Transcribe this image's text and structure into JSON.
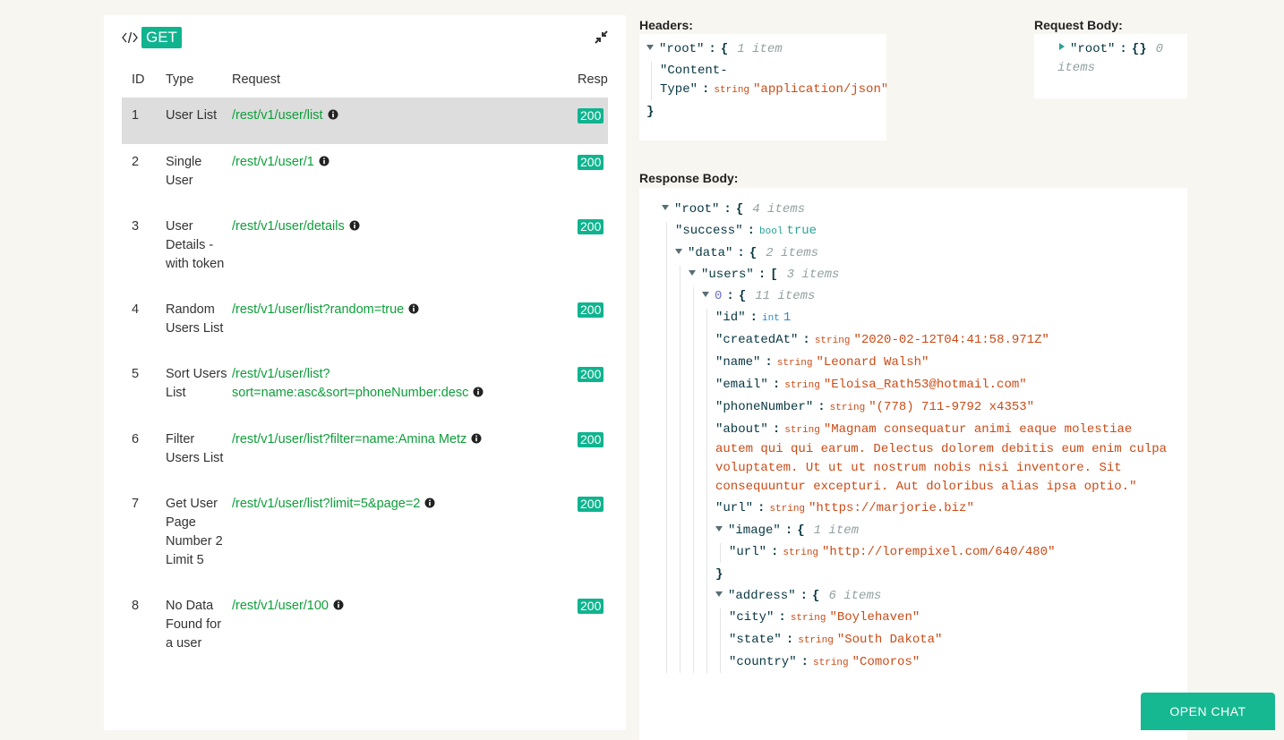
{
  "left_panel": {
    "method": "GET",
    "table": {
      "columns": [
        "ID",
        "Type",
        "Request",
        "Response"
      ],
      "rows": [
        [
          1,
          "User List",
          "/rest/v1/user/list",
          200
        ],
        [
          2,
          "Single User",
          "/rest/v1/user/1",
          200
        ],
        [
          3,
          "User Details - with token",
          "/rest/v1/user/details",
          200
        ],
        [
          4,
          "Random Users List",
          "/rest/v1/user/list?random=true",
          200
        ],
        [
          5,
          "Sort Users List",
          "/rest/v1/user/list?sort=name:asc&sort=phoneNumber:desc",
          200
        ],
        [
          6,
          "Filter Users List",
          "/rest/v1/user/list?filter=name:Amina Metz",
          200
        ],
        [
          7,
          "Get User Page Number 2 Limit 5",
          "/rest/v1/user/list?limit=5&page=2",
          200
        ],
        [
          8,
          "No Data Found for a user",
          "/rest/v1/user/100",
          200
        ]
      ]
    }
  },
  "headers": {
    "label": "Headers:",
    "tree": {
      "toggle": "expanded",
      "key": "\"root\"",
      "sep": ":",
      "open": "{",
      "count": "1 item",
      "children": [
        {
          "key": "\"Content-Type\"",
          "sep": ":",
          "type": "string",
          "value": "\"application/json\""
        }
      ],
      "close": "}"
    }
  },
  "request_body": {
    "label": "Request Body:",
    "tree": {
      "toggle": "collapsed",
      "key": "\"root\"",
      "sep": ":",
      "open": "{}",
      "count": "0 items"
    }
  },
  "response_body": {
    "label": "Response Body:",
    "tree": {
      "toggle": "expanded",
      "key": "\"root\"",
      "sep": ":",
      "open": "{",
      "count": "4 items",
      "children": [
        {
          "key": "\"success\"",
          "sep": ":",
          "type": "bool",
          "value": "true"
        },
        {
          "toggle": "expanded",
          "key": "\"data\"",
          "sep": ":",
          "open": "{",
          "count": "2 items",
          "children": [
            {
              "toggle": "expanded",
              "key": "\"users\"",
              "sep": ":",
              "open": "[",
              "count": "3 items",
              "children": [
                {
                  "toggle": "expanded",
                  "key": "0",
                  "sep": ":",
                  "open": "{",
                  "count": "11 items",
                  "children": [
                    {
                      "key": "\"id\"",
                      "sep": ":",
                      "type": "int",
                      "value": 1
                    },
                    {
                      "key": "\"createdAt\"",
                      "sep": ":",
                      "type": "string",
                      "value": "\"2020-02-12T04:41:58.971Z\""
                    },
                    {
                      "key": "\"name\"",
                      "sep": ":",
                      "type": "string",
                      "value": "\"Leonard Walsh\""
                    },
                    {
                      "key": "\"email\"",
                      "sep": ":",
                      "type": "string",
                      "value": "\"Eloisa_Rath53@hotmail.com\""
                    },
                    {
                      "key": "\"phoneNumber\"",
                      "sep": ":",
                      "type": "string",
                      "value": "\"(778) 711-9792 x4353\""
                    },
                    {
                      "key": "\"about\"",
                      "sep": ":",
                      "type": "string",
                      "value": "\"Magnam consequatur animi eaque molestiae autem qui qui earum. Delectus dolorem debitis eum enim culpa voluptatem. Ut ut ut nostrum nobis nisi inventore. Sit consequuntur excepturi. Aut doloribus alias ipsa optio.\""
                    },
                    {
                      "key": "\"url\"",
                      "sep": ":",
                      "type": "string",
                      "value": "\"https://marjorie.biz\""
                    },
                    {
                      "toggle": "expanded",
                      "key": "\"image\"",
                      "sep": ":",
                      "open": "{",
                      "count": "1 item",
                      "children": [
                        {
                          "key": "\"url\"",
                          "sep": ":",
                          "type": "string",
                          "value": "\"http://lorempixel.com/640/480\""
                        }
                      ],
                      "close": "}"
                    },
                    {
                      "toggle": "expanded",
                      "key": "\"address\"",
                      "sep": ":",
                      "open": "{",
                      "count": "6 items",
                      "children": [
                        {
                          "key": "\"city\"",
                          "sep": ":",
                          "type": "string",
                          "value": "\"Boylehaven\""
                        },
                        {
                          "key": "\"state\"",
                          "sep": ":",
                          "type": "string",
                          "value": "\"South Dakota\""
                        },
                        {
                          "key": "\"country\"",
                          "sep": ":",
                          "type": "string",
                          "value": "\"Comoros\""
                        }
                      ]
                    }
                  ]
                }
              ]
            }
          ]
        }
      ]
    }
  },
  "chat_button": "OPEN CHAT"
}
